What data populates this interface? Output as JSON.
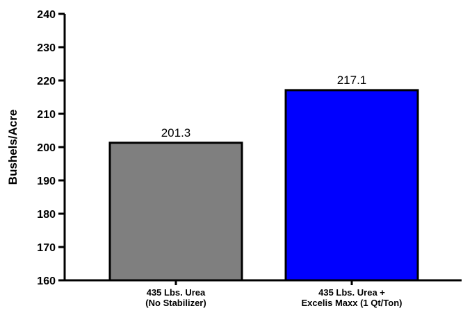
{
  "chart_data": {
    "type": "bar",
    "title": "",
    "xlabel": "",
    "ylabel": "Bushels/Acre",
    "ylim": [
      160,
      240
    ],
    "yticks": [
      160,
      170,
      180,
      190,
      200,
      210,
      220,
      230,
      240
    ],
    "grid": false,
    "categories": [
      [
        "435 Lbs. Urea",
        "(No Stabilizer)"
      ],
      [
        "435 Lbs. Urea +",
        "Excelis Maxx (1 Qt/Ton)"
      ]
    ],
    "values": [
      201.3,
      217.1
    ],
    "data_labels": [
      "201.3",
      "217.1"
    ],
    "colors": [
      "#7f7f7f",
      "#0000ff"
    ]
  }
}
